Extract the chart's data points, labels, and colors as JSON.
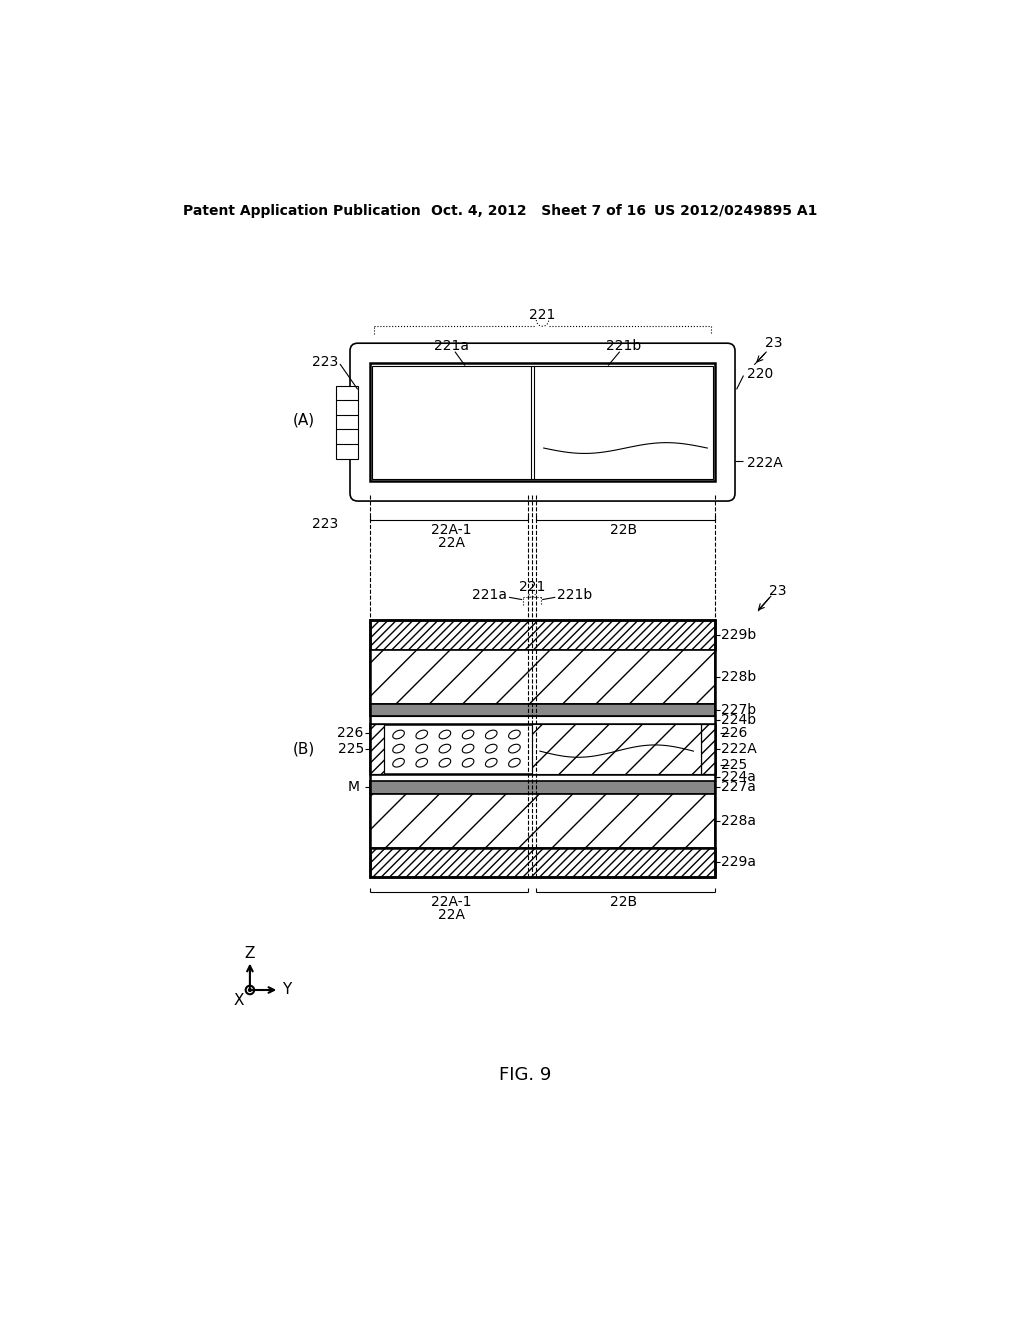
{
  "header_left": "Patent Application Publication",
  "header_mid": "Oct. 4, 2012   Sheet 7 of 16",
  "header_right": "US 2012/0249895 A1",
  "figure_label": "FIG. 9",
  "bg_color": "#ffffff"
}
